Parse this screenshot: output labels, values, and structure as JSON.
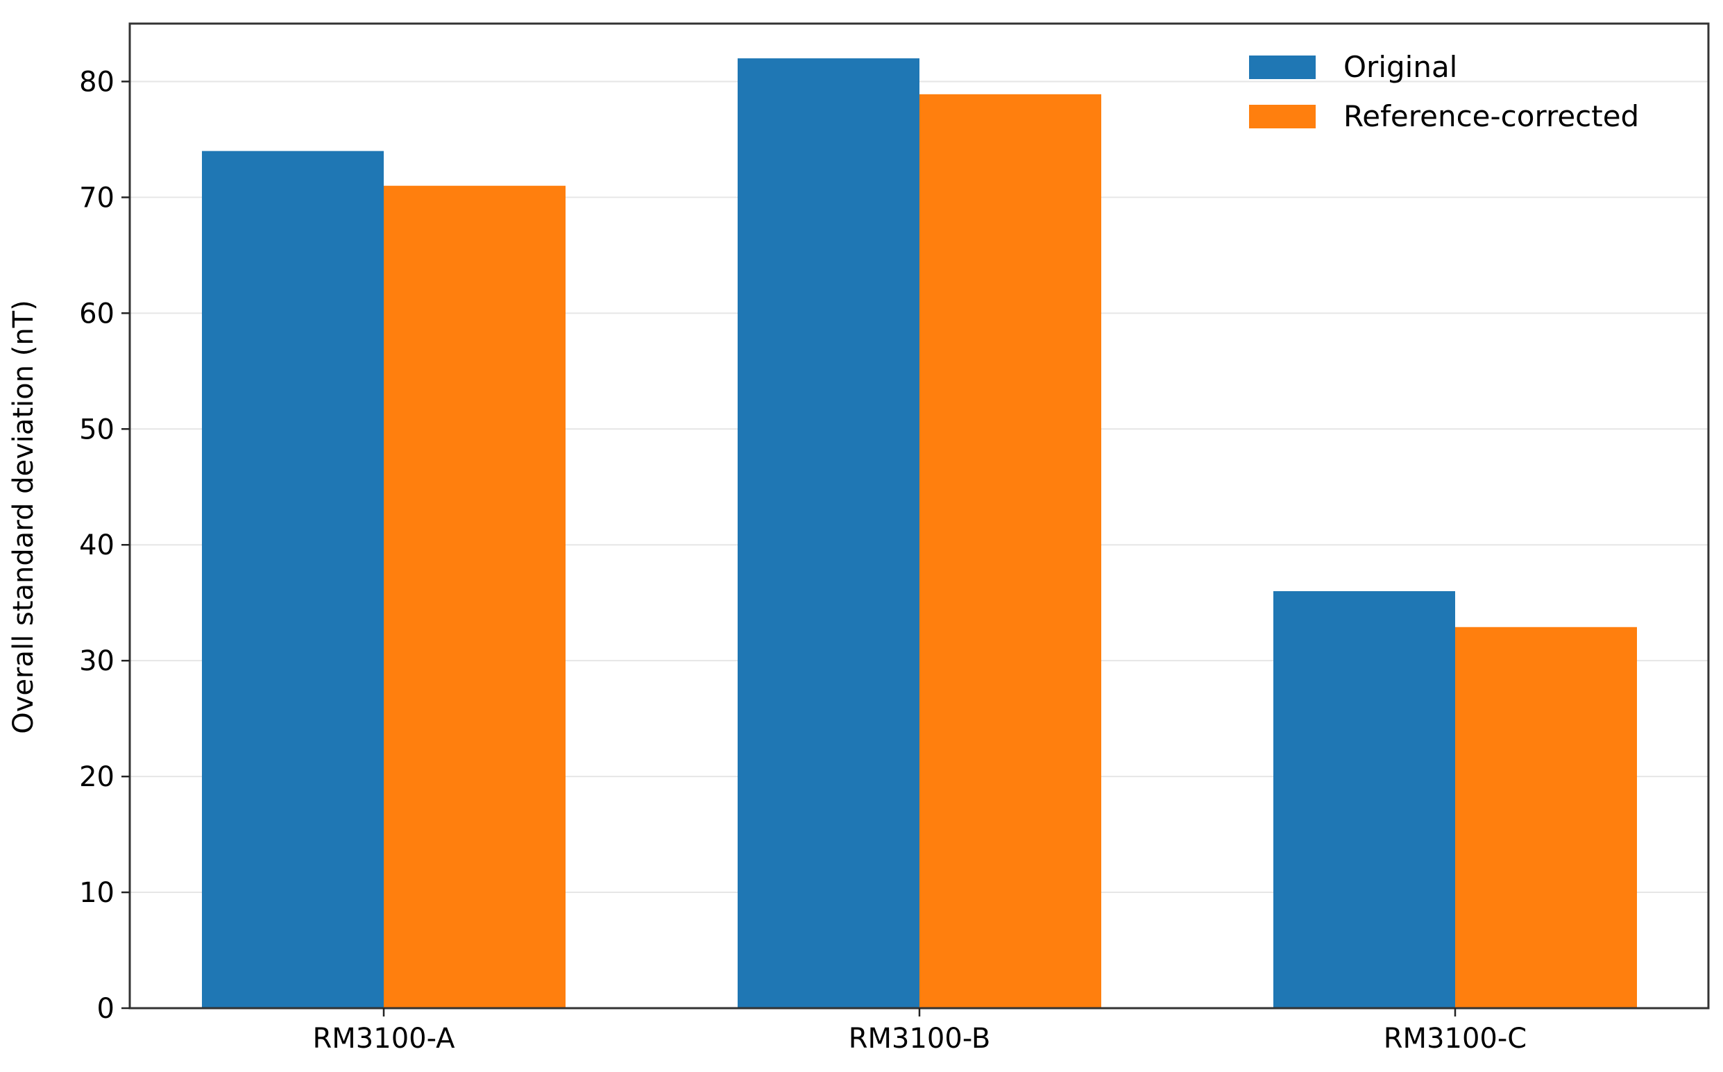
{
  "chart_data": {
    "type": "bar",
    "title": "",
    "xlabel": "",
    "ylabel": "Overall standard deviation (nT)",
    "categories": [
      "RM3100-A",
      "RM3100-B",
      "RM3100-C"
    ],
    "series": [
      {
        "name": "Original",
        "values": [
          74.0,
          82.0,
          36.0
        ],
        "color": "#1f77b4"
      },
      {
        "name": "Reference-corrected",
        "values": [
          71.0,
          78.9,
          32.9
        ],
        "color": "#ff7f0e"
      }
    ],
    "ylim": [
      0,
      85
    ],
    "yticks": [
      0,
      10,
      20,
      30,
      40,
      50,
      60,
      70,
      80
    ],
    "grid": "horizontal",
    "legend_position": "top-right"
  }
}
